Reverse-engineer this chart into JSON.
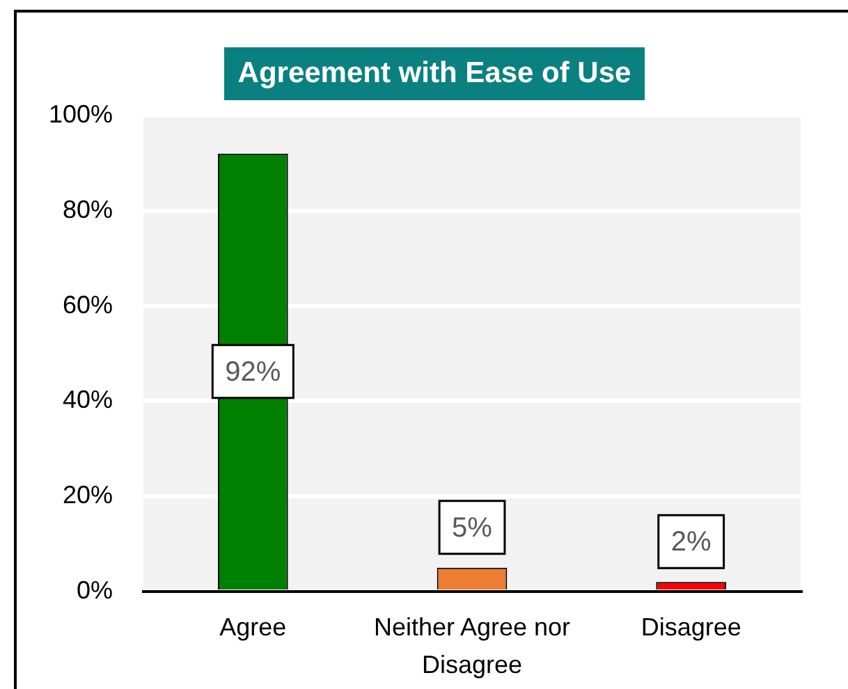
{
  "chart_data": {
    "type": "bar",
    "title": "Agreement with Ease of Use",
    "categories": [
      "Agree",
      "Neither Agree nor Disagree",
      "Disagree"
    ],
    "values": [
      92,
      5,
      2
    ],
    "colors": [
      "#008000",
      "#ed7d31",
      "#ff0000"
    ],
    "value_labels": [
      "92%",
      "5%",
      "2%"
    ],
    "ylim": [
      0,
      100
    ],
    "yticks": [
      {
        "value": 0,
        "label": "0%"
      },
      {
        "value": 20,
        "label": "20%"
      },
      {
        "value": 40,
        "label": "40%"
      },
      {
        "value": 60,
        "label": "60%"
      },
      {
        "value": 80,
        "label": "80%"
      },
      {
        "value": 100,
        "label": "100%"
      }
    ],
    "grid": "y"
  }
}
